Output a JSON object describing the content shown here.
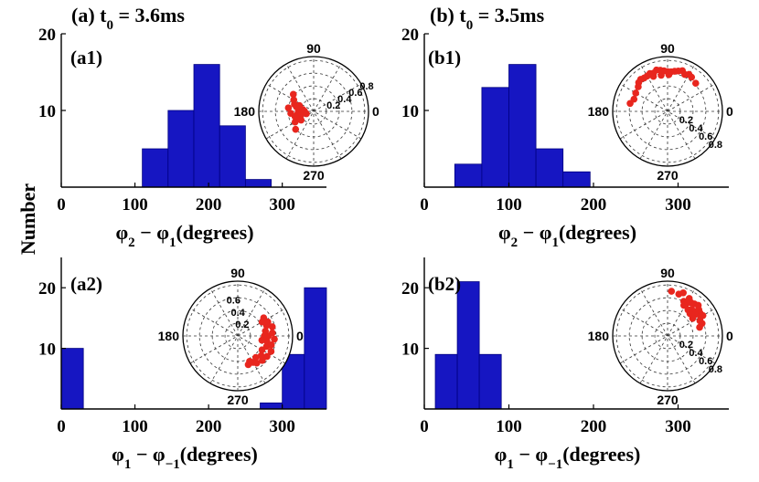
{
  "figure": {
    "ylabel": "Number",
    "colors": {
      "bar": "#1616c2",
      "bar_edge": "#000080",
      "dot": "#e8261e",
      "axis": "#000000"
    }
  },
  "chart_data": [
    {
      "id": "a1",
      "type": "bar",
      "panel_label": "(a1)",
      "column_title": "(a)  t_0 = 3.6ms",
      "xlim": [
        0,
        360
      ],
      "ylim": [
        0,
        20
      ],
      "bin_width": 35,
      "xticks": [
        0,
        100,
        200,
        300
      ],
      "yticks": [
        10,
        20
      ],
      "xlabel": "φ_2 − φ_1(degrees)",
      "bins": [
        {
          "start": 110,
          "value": 5
        },
        {
          "start": 145,
          "value": 10
        },
        {
          "start": 180,
          "value": 16
        },
        {
          "start": 215,
          "value": 8
        },
        {
          "start": 250,
          "value": 1
        }
      ],
      "polar": {
        "angle_labels": [
          "90",
          "180",
          "270",
          "0"
        ],
        "radial_labels": [
          "0.2",
          "0.4",
          "0.6",
          "0.8"
        ],
        "radial_side": "upper-right",
        "points": [
          [
            180,
            0.3
          ],
          [
            175,
            0.25
          ],
          [
            190,
            0.32
          ],
          [
            165,
            0.35
          ],
          [
            160,
            0.4
          ],
          [
            200,
            0.28
          ],
          [
            195,
            0.38
          ],
          [
            170,
            0.22
          ],
          [
            185,
            0.45
          ],
          [
            150,
            0.45
          ],
          [
            205,
            0.35
          ],
          [
            215,
            0.3
          ],
          [
            178,
            0.18
          ],
          [
            188,
            0.2
          ],
          [
            158,
            0.3
          ],
          [
            210,
            0.42
          ],
          [
            172,
            0.5
          ],
          [
            140,
            0.52
          ],
          [
            225,
            0.5
          ],
          [
            198,
            0.15
          ]
        ]
      }
    },
    {
      "id": "b1",
      "type": "bar",
      "panel_label": "(b1)",
      "column_title": "(b)  t_0 = 3.5ms",
      "xlim": [
        0,
        360
      ],
      "ylim": [
        0,
        20
      ],
      "bin_width": 32,
      "xticks": [
        0,
        100,
        200,
        300
      ],
      "yticks": [
        10,
        20
      ],
      "xlabel": "φ_2 − φ_1(degrees)",
      "bins": [
        {
          "start": 36,
          "value": 3
        },
        {
          "start": 68,
          "value": 13
        },
        {
          "start": 100,
          "value": 16
        },
        {
          "start": 132,
          "value": 5
        },
        {
          "start": 164,
          "value": 2
        }
      ],
      "polar": {
        "angle_labels": [
          "90",
          "180",
          "270",
          "0"
        ],
        "radial_labels": [
          "0.2",
          "0.4",
          "0.6",
          "0.8"
        ],
        "radial_side": "lower-right",
        "points": [
          [
            70,
            0.85
          ],
          [
            75,
            0.82
          ],
          [
            80,
            0.8
          ],
          [
            85,
            0.78
          ],
          [
            90,
            0.78
          ],
          [
            95,
            0.8
          ],
          [
            100,
            0.82
          ],
          [
            105,
            0.84
          ],
          [
            110,
            0.8
          ],
          [
            115,
            0.82
          ],
          [
            120,
            0.8
          ],
          [
            125,
            0.8
          ],
          [
            130,
            0.82
          ],
          [
            135,
            0.8
          ],
          [
            60,
            0.84
          ],
          [
            55,
            0.82
          ],
          [
            65,
            0.8
          ],
          [
            88,
            0.72
          ],
          [
            100,
            0.72
          ],
          [
            112,
            0.74
          ],
          [
            140,
            0.75
          ],
          [
            150,
            0.72
          ],
          [
            160,
            0.7
          ],
          [
            168,
            0.75
          ],
          [
            45,
            0.78
          ]
        ]
      }
    },
    {
      "id": "a2",
      "type": "bar",
      "panel_label": "(a2)",
      "xlim": [
        0,
        360
      ],
      "ylim": [
        0,
        25
      ],
      "bin_width": 30,
      "xticks": [
        0,
        100,
        200,
        300
      ],
      "yticks": [
        10,
        20
      ],
      "xlabel": "φ_1 − φ_−1(degrees)",
      "bins": [
        {
          "start": 0,
          "value": 10
        },
        {
          "start": 270,
          "value": 1
        },
        {
          "start": 300,
          "value": 9
        },
        {
          "start": 330,
          "value": 20
        }
      ],
      "polar": {
        "angle_labels": [
          "90",
          "180",
          "270",
          "0"
        ],
        "radial_labels": [
          "0.2",
          "0.4",
          "0.6"
        ],
        "radial_side": "upper-left",
        "points": [
          [
            0,
            0.6
          ],
          [
            10,
            0.55
          ],
          [
            20,
            0.6
          ],
          [
            30,
            0.55
          ],
          [
            -10,
            0.58
          ],
          [
            -20,
            0.6
          ],
          [
            -30,
            0.55
          ],
          [
            -40,
            0.6
          ],
          [
            -50,
            0.55
          ],
          [
            -60,
            0.6
          ],
          [
            5,
            0.68
          ],
          [
            -5,
            0.72
          ],
          [
            15,
            0.7
          ],
          [
            -15,
            0.68
          ],
          [
            -25,
            0.72
          ],
          [
            -35,
            0.7
          ],
          [
            -45,
            0.68
          ],
          [
            -55,
            0.65
          ],
          [
            0,
            0.52
          ],
          [
            -10,
            0.48
          ],
          [
            25,
            0.65
          ],
          [
            -65,
            0.55
          ],
          [
            -70,
            0.6
          ],
          [
            35,
            0.62
          ]
        ]
      }
    },
    {
      "id": "b2",
      "type": "bar",
      "panel_label": "(b2)",
      "xlim": [
        0,
        360
      ],
      "ylim": [
        0,
        25
      ],
      "bin_width": 26,
      "xticks": [
        0,
        100,
        200,
        300
      ],
      "yticks": [
        10,
        20
      ],
      "xlabel": "φ_1 − φ_−1(degrees)",
      "bins": [
        {
          "start": 13,
          "value": 9
        },
        {
          "start": 39,
          "value": 21
        },
        {
          "start": 65,
          "value": 9
        }
      ],
      "polar": {
        "angle_labels": [
          "90",
          "180",
          "270",
          "0"
        ],
        "radial_labels": [
          "0.2",
          "0.4",
          "0.6",
          "0.8"
        ],
        "radial_side": "lower-right",
        "points": [
          [
            70,
            0.9
          ],
          [
            60,
            0.85
          ],
          [
            55,
            0.8
          ],
          [
            50,
            0.82
          ],
          [
            45,
            0.85
          ],
          [
            40,
            0.8
          ],
          [
            35,
            0.78
          ],
          [
            30,
            0.75
          ],
          [
            25,
            0.7
          ],
          [
            20,
            0.72
          ],
          [
            65,
            0.75
          ],
          [
            60,
            0.72
          ],
          [
            48,
            0.7
          ],
          [
            42,
            0.72
          ],
          [
            38,
            0.68
          ],
          [
            52,
            0.65
          ],
          [
            58,
            0.78
          ],
          [
            62,
            0.68
          ],
          [
            75,
            0.85
          ],
          [
            30,
            0.8
          ],
          [
            85,
            0.88
          ],
          [
            15,
            0.65
          ],
          [
            45,
            0.62
          ],
          [
            35,
            0.6
          ]
        ]
      }
    }
  ]
}
